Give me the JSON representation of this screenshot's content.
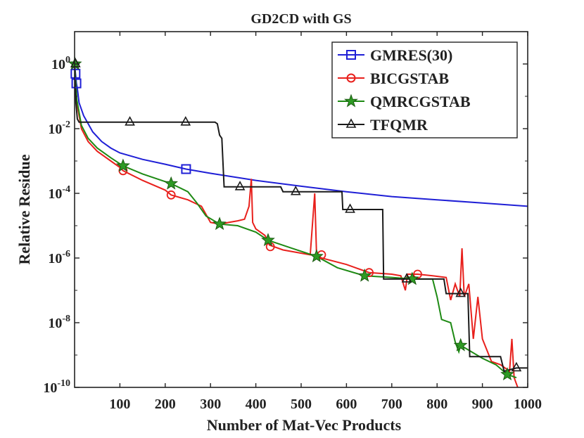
{
  "chart_data": {
    "type": "line",
    "title": "GD2CD with GS",
    "xlabel": "Number of Mat-Vec Products",
    "ylabel": "Relative Residue",
    "xlim": [
      0,
      1000
    ],
    "ylim_log10": [
      -10,
      1
    ],
    "yscale": "log",
    "grid": false,
    "legend_position": "top-right",
    "x_ticks": [
      100,
      200,
      300,
      400,
      500,
      600,
      700,
      800,
      900,
      1000
    ],
    "x_tick_labels": [
      "100",
      "200",
      "300",
      "400",
      "500",
      "600",
      "700",
      "800",
      "900",
      "1000"
    ],
    "y_ticks": [
      {
        "exp": 0,
        "base": "10",
        "power": "0"
      },
      {
        "exp": -2,
        "base": "10",
        "power": "-2"
      },
      {
        "exp": -4,
        "base": "10",
        "power": "-4"
      },
      {
        "exp": -6,
        "base": "10",
        "power": "-6"
      },
      {
        "exp": -8,
        "base": "10",
        "power": "-8"
      },
      {
        "exp": -10,
        "base": "10",
        "power": "-10"
      }
    ],
    "series": [
      {
        "name": "GMRES(30)",
        "color": "#1f1fd6",
        "marker": "square",
        "points": [
          [
            0,
            0
          ],
          [
            2,
            -0.3
          ],
          [
            4,
            -0.6
          ],
          [
            6,
            -0.75
          ],
          [
            10,
            -1.2
          ],
          [
            20,
            -1.6
          ],
          [
            40,
            -2.1
          ],
          [
            60,
            -2.4
          ],
          [
            80,
            -2.6
          ],
          [
            100,
            -2.75
          ],
          [
            150,
            -2.95
          ],
          [
            200,
            -3.1
          ],
          [
            246,
            -3.25
          ],
          [
            300,
            -3.38
          ],
          [
            400,
            -3.6
          ],
          [
            500,
            -3.78
          ],
          [
            600,
            -3.95
          ],
          [
            700,
            -4.1
          ],
          [
            800,
            -4.2
          ],
          [
            900,
            -4.3
          ],
          [
            1000,
            -4.4
          ]
        ],
        "markers": [
          [
            2,
            -0.3
          ],
          [
            4,
            -0.6
          ],
          [
            246,
            -3.25
          ]
        ]
      },
      {
        "name": "BICGSTAB",
        "color": "#e8201c",
        "marker": "circle",
        "points": [
          [
            0,
            0
          ],
          [
            5,
            -1.2
          ],
          [
            15,
            -2.0
          ],
          [
            30,
            -2.4
          ],
          [
            50,
            -2.7
          ],
          [
            80,
            -3.0
          ],
          [
            100,
            -3.2
          ],
          [
            107,
            -3.3
          ],
          [
            150,
            -3.6
          ],
          [
            200,
            -3.9
          ],
          [
            213,
            -4.05
          ],
          [
            250,
            -4.2
          ],
          [
            280,
            -4.4
          ],
          [
            300,
            -4.9
          ],
          [
            320,
            -4.95
          ],
          [
            340,
            -4.9
          ],
          [
            360,
            -4.85
          ],
          [
            375,
            -4.8
          ],
          [
            385,
            -4.4
          ],
          [
            390,
            -3.55
          ],
          [
            393,
            -4.9
          ],
          [
            400,
            -5.1
          ],
          [
            420,
            -5.3
          ],
          [
            430,
            -5.6
          ],
          [
            460,
            -5.75
          ],
          [
            500,
            -5.85
          ],
          [
            520,
            -5.9
          ],
          [
            530,
            -4.0
          ],
          [
            534,
            -5.9
          ],
          [
            545,
            -6.0
          ],
          [
            600,
            -6.2
          ],
          [
            650,
            -6.45
          ],
          [
            700,
            -6.5
          ],
          [
            720,
            -6.55
          ],
          [
            730,
            -7.0
          ],
          [
            735,
            -6.5
          ],
          [
            757,
            -6.5
          ],
          [
            790,
            -6.55
          ],
          [
            820,
            -6.6
          ],
          [
            830,
            -7.3
          ],
          [
            840,
            -6.8
          ],
          [
            850,
            -7.2
          ],
          [
            855,
            -5.7
          ],
          [
            860,
            -7.2
          ],
          [
            870,
            -6.8
          ],
          [
            880,
            -8.5
          ],
          [
            890,
            -7.2
          ],
          [
            900,
            -8.5
          ],
          [
            920,
            -9.2
          ],
          [
            940,
            -9.3
          ],
          [
            960,
            -9.5
          ],
          [
            965,
            -8.5
          ],
          [
            970,
            -9.7
          ],
          [
            978,
            -10.0
          ]
        ],
        "markers": [
          [
            107,
            -3.3
          ],
          [
            213,
            -4.05
          ],
          [
            432,
            -5.65
          ],
          [
            545,
            -5.9
          ],
          [
            650,
            -6.45
          ],
          [
            757,
            -6.5
          ]
        ]
      },
      {
        "name": "QMRCGSTAB",
        "color": "#1e8a14",
        "marker": "star",
        "points": [
          [
            0,
            0
          ],
          [
            5,
            -1.1
          ],
          [
            15,
            -1.9
          ],
          [
            30,
            -2.3
          ],
          [
            50,
            -2.6
          ],
          [
            80,
            -2.9
          ],
          [
            107,
            -3.15
          ],
          [
            150,
            -3.4
          ],
          [
            213,
            -3.7
          ],
          [
            250,
            -3.95
          ],
          [
            270,
            -4.3
          ],
          [
            290,
            -4.7
          ],
          [
            320,
            -4.95
          ],
          [
            360,
            -5.0
          ],
          [
            400,
            -5.2
          ],
          [
            427,
            -5.45
          ],
          [
            480,
            -5.7
          ],
          [
            534,
            -5.95
          ],
          [
            580,
            -6.3
          ],
          [
            640,
            -6.55
          ],
          [
            700,
            -6.6
          ],
          [
            745,
            -6.65
          ],
          [
            790,
            -6.65
          ],
          [
            800,
            -7.2
          ],
          [
            810,
            -7.9
          ],
          [
            830,
            -8.0
          ],
          [
            840,
            -8.6
          ],
          [
            848,
            -8.9
          ],
          [
            852,
            -8.7
          ],
          [
            870,
            -8.85
          ],
          [
            900,
            -9.1
          ],
          [
            930,
            -9.3
          ],
          [
            955,
            -9.6
          ],
          [
            975,
            -9.7
          ]
        ],
        "markers": [
          [
            1,
            0
          ],
          [
            107,
            -3.15
          ],
          [
            213,
            -3.7
          ],
          [
            320,
            -4.95
          ],
          [
            427,
            -5.45
          ],
          [
            534,
            -5.95
          ],
          [
            640,
            -6.55
          ],
          [
            745,
            -6.65
          ],
          [
            852,
            -8.7
          ],
          [
            955,
            -9.6
          ]
        ]
      },
      {
        "name": "TFQMR",
        "color": "#1a1a1a",
        "marker": "triangle",
        "points": [
          [
            0,
            0
          ],
          [
            3,
            -1.2
          ],
          [
            6,
            -1.7
          ],
          [
            10,
            -1.8
          ],
          [
            122,
            -1.8
          ],
          [
            245,
            -1.8
          ],
          [
            310,
            -1.8
          ],
          [
            315,
            -1.85
          ],
          [
            320,
            -2.2
          ],
          [
            325,
            -2.3
          ],
          [
            330,
            -3.8
          ],
          [
            340,
            -3.8
          ],
          [
            365,
            -3.8
          ],
          [
            455,
            -3.8
          ],
          [
            460,
            -3.95
          ],
          [
            560,
            -3.95
          ],
          [
            590,
            -3.95
          ],
          [
            592,
            -4.5
          ],
          [
            608,
            -4.5
          ],
          [
            680,
            -4.5
          ],
          [
            682,
            -6.65
          ],
          [
            733,
            -6.65
          ],
          [
            800,
            -6.65
          ],
          [
            815,
            -6.65
          ],
          [
            820,
            -7.1
          ],
          [
            850,
            -7.1
          ],
          [
            868,
            -7.1
          ],
          [
            872,
            -9.05
          ],
          [
            920,
            -9.05
          ],
          [
            940,
            -9.05
          ],
          [
            948,
            -9.5
          ],
          [
            975,
            -9.4
          ],
          [
            1000,
            -9.4
          ]
        ],
        "markers": [
          [
            2,
            0
          ],
          [
            122,
            -1.8
          ],
          [
            245,
            -1.8
          ],
          [
            365,
            -3.8
          ],
          [
            488,
            -3.95
          ],
          [
            608,
            -4.5
          ],
          [
            733,
            -6.65
          ],
          [
            852,
            -7.1
          ],
          [
            975,
            -9.4
          ]
        ]
      }
    ]
  }
}
